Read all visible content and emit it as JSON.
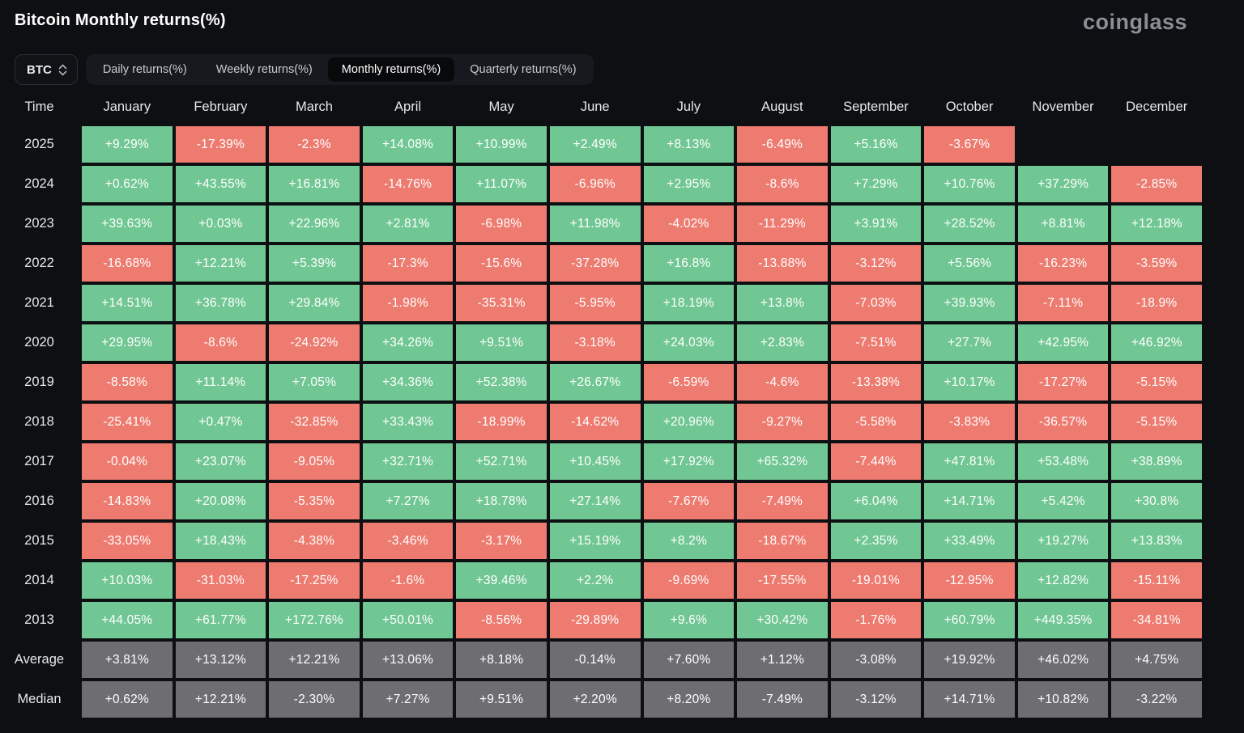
{
  "header": {
    "title": "Bitcoin Monthly returns(%)",
    "logo": "coinglass"
  },
  "controls": {
    "symbol_select": {
      "value": "BTC"
    },
    "tabs": [
      {
        "label": "Daily returns(%)",
        "active": false
      },
      {
        "label": "Weekly returns(%)",
        "active": false
      },
      {
        "label": "Monthly returns(%)",
        "active": true
      },
      {
        "label": "Quarterly returns(%)",
        "active": false
      }
    ]
  },
  "colors": {
    "positive": "#71c793",
    "negative": "#ed7b70",
    "neutral": "#6e6e72",
    "background": "#0d0f12",
    "active_tab_bg": "#08090b"
  },
  "chart_data": {
    "type": "heatmap",
    "title": "Bitcoin Monthly returns(%)",
    "columns": [
      "Time",
      "January",
      "February",
      "March",
      "April",
      "May",
      "June",
      "July",
      "August",
      "September",
      "October",
      "November",
      "December"
    ],
    "rows": [
      {
        "label": "2025",
        "style": "year",
        "values": [
          "+9.29%",
          "-17.39%",
          "-2.3%",
          "+14.08%",
          "+10.99%",
          "+2.49%",
          "+8.13%",
          "-6.49%",
          "+5.16%",
          "-3.67%",
          null,
          null
        ]
      },
      {
        "label": "2024",
        "style": "year",
        "values": [
          "+0.62%",
          "+43.55%",
          "+16.81%",
          "-14.76%",
          "+11.07%",
          "-6.96%",
          "+2.95%",
          "-8.6%",
          "+7.29%",
          "+10.76%",
          "+37.29%",
          "-2.85%"
        ]
      },
      {
        "label": "2023",
        "style": "year",
        "values": [
          "+39.63%",
          "+0.03%",
          "+22.96%",
          "+2.81%",
          "-6.98%",
          "+11.98%",
          "-4.02%",
          "-11.29%",
          "+3.91%",
          "+28.52%",
          "+8.81%",
          "+12.18%"
        ]
      },
      {
        "label": "2022",
        "style": "year",
        "values": [
          "-16.68%",
          "+12.21%",
          "+5.39%",
          "-17.3%",
          "-15.6%",
          "-37.28%",
          "+16.8%",
          "-13.88%",
          "-3.12%",
          "+5.56%",
          "-16.23%",
          "-3.59%"
        ]
      },
      {
        "label": "2021",
        "style": "year",
        "values": [
          "+14.51%",
          "+36.78%",
          "+29.84%",
          "-1.98%",
          "-35.31%",
          "-5.95%",
          "+18.19%",
          "+13.8%",
          "-7.03%",
          "+39.93%",
          "-7.11%",
          "-18.9%"
        ]
      },
      {
        "label": "2020",
        "style": "year",
        "values": [
          "+29.95%",
          "-8.6%",
          "-24.92%",
          "+34.26%",
          "+9.51%",
          "-3.18%",
          "+24.03%",
          "+2.83%",
          "-7.51%",
          "+27.7%",
          "+42.95%",
          "+46.92%"
        ]
      },
      {
        "label": "2019",
        "style": "year",
        "values": [
          "-8.58%",
          "+11.14%",
          "+7.05%",
          "+34.36%",
          "+52.38%",
          "+26.67%",
          "-6.59%",
          "-4.6%",
          "-13.38%",
          "+10.17%",
          "-17.27%",
          "-5.15%"
        ]
      },
      {
        "label": "2018",
        "style": "year",
        "values": [
          "-25.41%",
          "+0.47%",
          "-32.85%",
          "+33.43%",
          "-18.99%",
          "-14.62%",
          "+20.96%",
          "-9.27%",
          "-5.58%",
          "-3.83%",
          "-36.57%",
          "-5.15%"
        ]
      },
      {
        "label": "2017",
        "style": "year",
        "values": [
          "-0.04%",
          "+23.07%",
          "-9.05%",
          "+32.71%",
          "+52.71%",
          "+10.45%",
          "+17.92%",
          "+65.32%",
          "-7.44%",
          "+47.81%",
          "+53.48%",
          "+38.89%"
        ]
      },
      {
        "label": "2016",
        "style": "year",
        "values": [
          "-14.83%",
          "+20.08%",
          "-5.35%",
          "+7.27%",
          "+18.78%",
          "+27.14%",
          "-7.67%",
          "-7.49%",
          "+6.04%",
          "+14.71%",
          "+5.42%",
          "+30.8%"
        ]
      },
      {
        "label": "2015",
        "style": "year",
        "values": [
          "-33.05%",
          "+18.43%",
          "-4.38%",
          "-3.46%",
          "-3.17%",
          "+15.19%",
          "+8.2%",
          "-18.67%",
          "+2.35%",
          "+33.49%",
          "+19.27%",
          "+13.83%"
        ]
      },
      {
        "label": "2014",
        "style": "year",
        "values": [
          "+10.03%",
          "-31.03%",
          "-17.25%",
          "-1.6%",
          "+39.46%",
          "+2.2%",
          "-9.69%",
          "-17.55%",
          "-19.01%",
          "-12.95%",
          "+12.82%",
          "-15.11%"
        ]
      },
      {
        "label": "2013",
        "style": "year",
        "values": [
          "+44.05%",
          "+61.77%",
          "+172.76%",
          "+50.01%",
          "-8.56%",
          "-29.89%",
          "+9.6%",
          "+30.42%",
          "-1.76%",
          "+60.79%",
          "+449.35%",
          "-34.81%"
        ]
      },
      {
        "label": "Average",
        "style": "neutral",
        "values": [
          "+3.81%",
          "+13.12%",
          "+12.21%",
          "+13.06%",
          "+8.18%",
          "-0.14%",
          "+7.60%",
          "+1.12%",
          "-3.08%",
          "+19.92%",
          "+46.02%",
          "+4.75%"
        ]
      },
      {
        "label": "Median",
        "style": "neutral",
        "values": [
          "+0.62%",
          "+12.21%",
          "-2.30%",
          "+7.27%",
          "+9.51%",
          "+2.20%",
          "+8.20%",
          "-7.49%",
          "-3.12%",
          "+14.71%",
          "+10.82%",
          "-3.22%"
        ]
      }
    ]
  }
}
